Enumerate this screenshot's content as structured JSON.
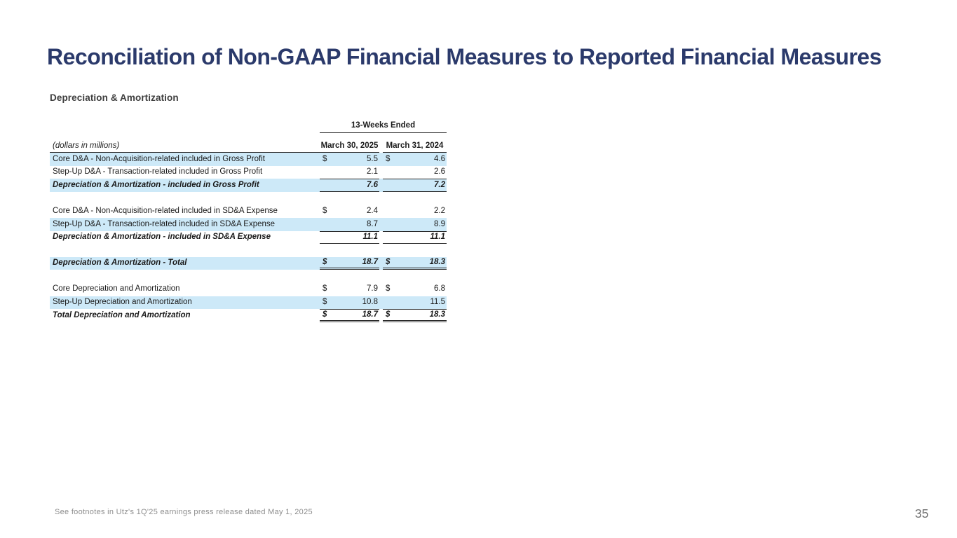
{
  "slide": {
    "title": "Reconciliation of Non-GAAP Financial Measures to Reported Financial Measures",
    "section_title": "Depreciation & Amortization",
    "footnote": "See footnotes in Utz's 1Q'25 earnings press release dated May 1, 2025",
    "page_number": "35"
  },
  "table": {
    "period_header": "13-Weeks Ended",
    "units_label": "(dollars in millions)",
    "columns": [
      "March 30, 2025",
      "March 31, 2024"
    ],
    "rows": [
      {
        "label": "Core D&A - Non-Acquisition-related included in Gross Profit",
        "d1": "$",
        "v1": "5.5",
        "d2": "$",
        "v2": "4.6"
      },
      {
        "label": "Step-Up D&A - Transaction-related included in Gross Profit",
        "v1": "2.1",
        "v2": "2.6"
      },
      {
        "label": "Depreciation & Amortization - included in Gross Profit",
        "v1": "7.6",
        "v2": "7.2"
      },
      {
        "label": "Core D&A - Non-Acquisition-related included in SD&A Expense",
        "d1": "$",
        "v1": "2.4",
        "v2": "2.2"
      },
      {
        "label": "Step-Up D&A - Transaction-related included in SD&A Expense",
        "v1": "8.7",
        "v2": "8.9"
      },
      {
        "label": "Depreciation & Amortization - included in SD&A Expense",
        "v1": "11.1",
        "v2": "11.1"
      },
      {
        "label": "Depreciation & Amortization - Total",
        "d1": "$",
        "v1": "18.7",
        "d2": "$",
        "v2": "18.3"
      },
      {
        "label": "Core Depreciation and Amortization",
        "d1": "$",
        "v1": "7.9",
        "d2": "$",
        "v2": "6.8"
      },
      {
        "label": "Step-Up Depreciation and Amortization",
        "d1": "$",
        "v1": "10.8",
        "v2": "11.5"
      },
      {
        "label": "Total Depreciation and Amortization",
        "d1": "$",
        "v1": "18.7",
        "d2": "$",
        "v2": "18.3"
      }
    ]
  },
  "colors": {
    "title_navy": "#2b3a6b",
    "row_highlight_blue": "#cde9f8",
    "table_border": "#262626",
    "footnote_gray": "#8d8d8d"
  }
}
